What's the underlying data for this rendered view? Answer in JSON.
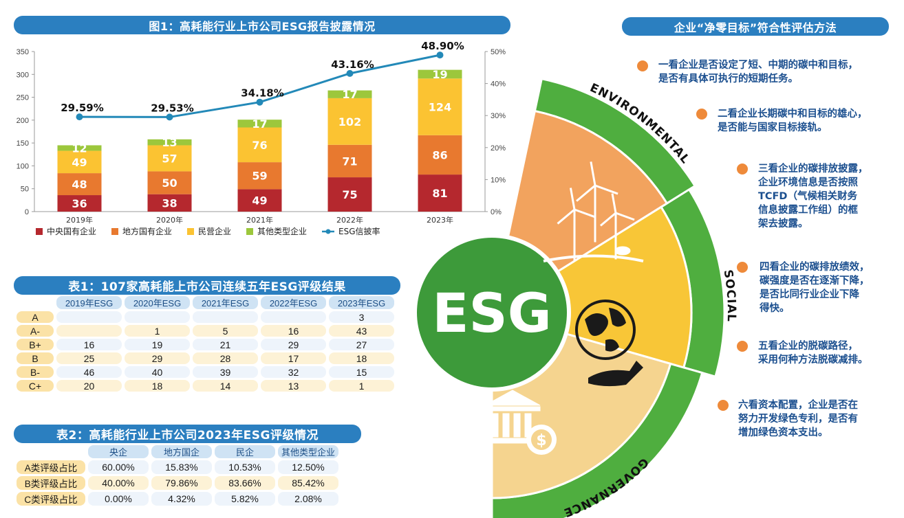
{
  "fig1_title": "图1：高耗能行业上市公司ESG报告披露情况",
  "table1_title": "表1：107家高耗能上市公司连续五年ESG评级结果",
  "table2_title": "表2：高耗能行业上市公司2023年ESG评级情况",
  "method_title": "企业“净零目标”符合性评估方法",
  "chart_data": {
    "type": "bar",
    "stacked": true,
    "categories": [
      "2019年",
      "2020年",
      "2021年",
      "2022年",
      "2023年"
    ],
    "series": [
      {
        "name": "中央国有企业",
        "color": "#b5282e",
        "values": [
          36,
          38,
          49,
          75,
          81
        ]
      },
      {
        "name": "地方国有企业",
        "color": "#e8792f",
        "values": [
          48,
          50,
          59,
          71,
          86
        ]
      },
      {
        "name": "民营企业",
        "color": "#fbc332",
        "values": [
          49,
          57,
          76,
          102,
          124
        ]
      },
      {
        "name": "其他类型企业",
        "color": "#9cc73c",
        "values": [
          12,
          13,
          17,
          17,
          19
        ]
      }
    ],
    "line_series": {
      "name": "ESG信披率",
      "color": "#2389b8",
      "values": [
        29.59,
        29.53,
        34.18,
        43.16,
        48.9
      ],
      "labels": [
        "29.59%",
        "29.53%",
        "34.18%",
        "43.16%",
        "48.90%"
      ]
    },
    "y_left": {
      "ticks": [
        "0",
        "50",
        "100",
        "150",
        "200",
        "250",
        "300",
        "350"
      ],
      "ylim": [
        0,
        350
      ]
    },
    "y_right": {
      "ticks": [
        "0%",
        "10%",
        "20%",
        "30%",
        "40%",
        "50%"
      ],
      "ylim": [
        0,
        50
      ]
    },
    "legend_position": "bottom"
  },
  "table1": {
    "columns": [
      "2019年ESG",
      "2020年ESG",
      "2021年ESG",
      "2022年ESG",
      "2023年ESG"
    ],
    "rows": [
      {
        "label": "A",
        "values": [
          "",
          "",
          "",
          "",
          "3"
        ]
      },
      {
        "label": "A-",
        "values": [
          "",
          "1",
          "5",
          "16",
          "43"
        ]
      },
      {
        "label": "B+",
        "values": [
          "16",
          "19",
          "21",
          "29",
          "27"
        ]
      },
      {
        "label": "B",
        "values": [
          "25",
          "29",
          "28",
          "17",
          "18"
        ]
      },
      {
        "label": "B-",
        "values": [
          "46",
          "40",
          "39",
          "32",
          "15"
        ]
      },
      {
        "label": "C+",
        "values": [
          "20",
          "18",
          "14",
          "13",
          "1"
        ]
      }
    ]
  },
  "table2": {
    "columns": [
      "央企",
      "地方国企",
      "民企",
      "其他类型企业"
    ],
    "rows": [
      {
        "label": "A类评级占比",
        "values": [
          "60.00%",
          "15.83%",
          "10.53%",
          "12.50%"
        ]
      },
      {
        "label": "B类评级占比",
        "values": [
          "40.00%",
          "79.86%",
          "83.66%",
          "85.42%"
        ]
      },
      {
        "label": "C类评级占比",
        "values": [
          "0.00%",
          "4.32%",
          "5.82%",
          "2.08%"
        ]
      }
    ]
  },
  "esg_graphic": {
    "center_label": "ESG",
    "environmental_label": "ENVIRONMENTAL",
    "social_label": "SOCIAL",
    "governance_label": "GOVERNANCE",
    "environmental_icon": "wind-turbine-icon",
    "social_icon": "globe-hand-icon",
    "governance_icon": "bank-dollar-icon",
    "colors": {
      "ring": "#4fae3f",
      "circle": "#3d9a3a",
      "env": "#f2a35e",
      "social": "#f8c637",
      "gov": "#f5d48f"
    }
  },
  "methods": [
    "一看企业是否设定了短、中期的碳中和目标，\n是否有具体可执行的短期任务。",
    "二看企业长期碳中和目标的雄心，\n是否能与国家目标接轨。",
    "三看企业的碳排放披露，\n企业环境信息是否按照\nTCFD（气候相关财务\n信息披露工作组）的框\n架去披露。",
    "四看企业的碳排放绩效，\n碳强度是否在逐渐下降，\n是否比同行业企业下降\n得快。",
    "五看企业的脱碳路径，\n采用何种方法脱碳减排。",
    "六看资本配置，企业是否在\n努力开发绿色专利，是否有\n增加绿色资本支出。"
  ]
}
